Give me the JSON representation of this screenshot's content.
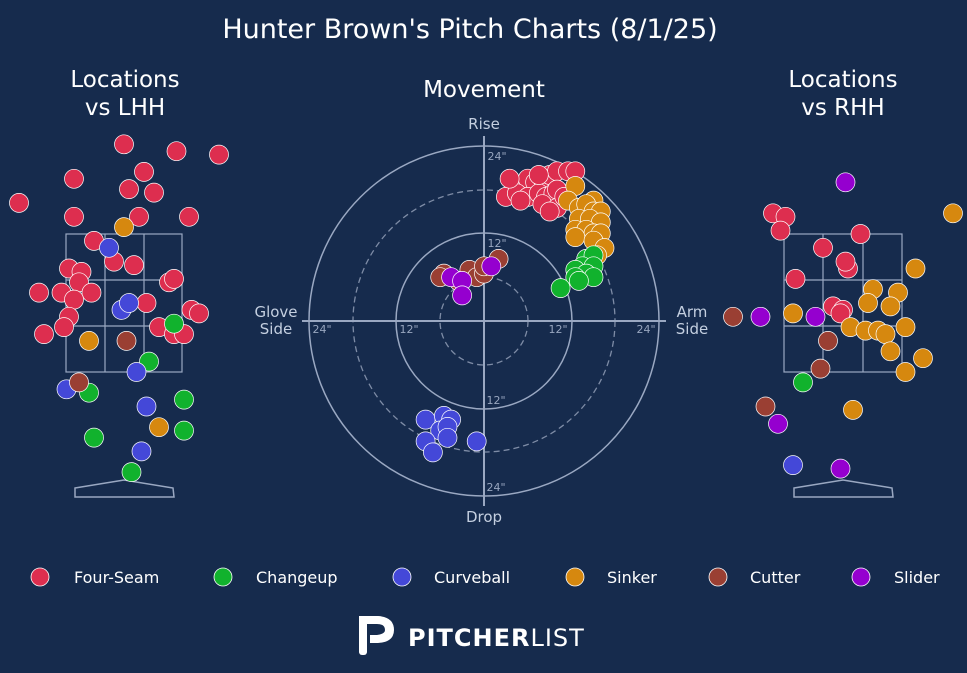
{
  "title": "Hunter Brown's Pitch Charts (8/1/25)",
  "panels": {
    "lhh_title": [
      "Locations",
      "vs LHH"
    ],
    "movement_title": "Movement",
    "rhh_title": [
      "Locations",
      "vs RHH"
    ]
  },
  "movement_axes": {
    "top": "Rise",
    "bottom": "Drop",
    "left": [
      "Glove",
      "Side"
    ],
    "right": [
      "Arm",
      "Side"
    ],
    "ring_labels": [
      "24\"",
      "12\"",
      "12\"",
      "24\"",
      "24\"",
      "12\"",
      "12\"",
      "24\""
    ]
  },
  "colors": {
    "background": "#162b4d",
    "Four-Seam": "#dd2e4f",
    "Changeup": "#11b22d",
    "Curveball": "#4448d8",
    "Sinker": "#d6880f",
    "Cutter": "#9a3f33",
    "Slider": "#9500cf"
  },
  "legend": [
    "Four-Seam",
    "Changeup",
    "Curveball",
    "Sinker",
    "Cutter",
    "Slider"
  ],
  "brand": {
    "bold": "PITCHER",
    "light": "LIST"
  },
  "chart_data": [
    {
      "type": "scatter",
      "title": "Locations vs LHH",
      "units": "feet, catcher view",
      "xlim": [
        -2.2,
        2.2
      ],
      "ylim": [
        -0.3,
        5.4
      ],
      "points": [
        {
          "pitch": "Four-Seam",
          "x": 0.0,
          "y": 4.8
        },
        {
          "pitch": "Four-Seam",
          "x": 1.05,
          "y": 4.7
        },
        {
          "pitch": "Four-Seam",
          "x": 1.9,
          "y": 4.65
        },
        {
          "pitch": "Four-Seam",
          "x": -1.0,
          "y": 4.3
        },
        {
          "pitch": "Four-Seam",
          "x": 0.4,
          "y": 4.4
        },
        {
          "pitch": "Four-Seam",
          "x": 0.1,
          "y": 4.15
        },
        {
          "pitch": "Four-Seam",
          "x": 0.6,
          "y": 4.1
        },
        {
          "pitch": "Four-Seam",
          "x": -2.1,
          "y": 3.95
        },
        {
          "pitch": "Four-Seam",
          "x": -1.0,
          "y": 3.75
        },
        {
          "pitch": "Four-Seam",
          "x": 0.3,
          "y": 3.75
        },
        {
          "pitch": "Four-Seam",
          "x": 1.3,
          "y": 3.75
        },
        {
          "pitch": "Four-Seam",
          "x": -0.6,
          "y": 3.4
        },
        {
          "pitch": "Four-Seam",
          "x": -0.2,
          "y": 3.1
        },
        {
          "pitch": "Four-Seam",
          "x": 0.2,
          "y": 3.05
        },
        {
          "pitch": "Four-Seam",
          "x": -1.1,
          "y": 3.0
        },
        {
          "pitch": "Four-Seam",
          "x": -0.85,
          "y": 2.95
        },
        {
          "pitch": "Four-Seam",
          "x": -0.9,
          "y": 2.8
        },
        {
          "pitch": "Four-Seam",
          "x": 0.9,
          "y": 2.8
        },
        {
          "pitch": "Four-Seam",
          "x": 1.0,
          "y": 2.85
        },
        {
          "pitch": "Four-Seam",
          "x": -1.7,
          "y": 2.65
        },
        {
          "pitch": "Four-Seam",
          "x": -1.25,
          "y": 2.65
        },
        {
          "pitch": "Four-Seam",
          "x": -0.65,
          "y": 2.65
        },
        {
          "pitch": "Four-Seam",
          "x": -1.0,
          "y": 2.55
        },
        {
          "pitch": "Four-Seam",
          "x": 0.45,
          "y": 2.5
        },
        {
          "pitch": "Four-Seam",
          "x": 1.35,
          "y": 2.4
        },
        {
          "pitch": "Four-Seam",
          "x": 1.5,
          "y": 2.35
        },
        {
          "pitch": "Four-Seam",
          "x": -1.1,
          "y": 2.3
        },
        {
          "pitch": "Four-Seam",
          "x": -1.2,
          "y": 2.15
        },
        {
          "pitch": "Four-Seam",
          "x": 0.7,
          "y": 2.15
        },
        {
          "pitch": "Four-Seam",
          "x": 1.0,
          "y": 2.05
        },
        {
          "pitch": "Four-Seam",
          "x": 1.2,
          "y": 2.05
        },
        {
          "pitch": "Four-Seam",
          "x": -1.6,
          "y": 2.05
        },
        {
          "pitch": "Changeup",
          "x": 1.0,
          "y": 2.2
        },
        {
          "pitch": "Changeup",
          "x": 0.5,
          "y": 1.65
        },
        {
          "pitch": "Changeup",
          "x": -0.7,
          "y": 1.2
        },
        {
          "pitch": "Changeup",
          "x": 1.2,
          "y": 1.1
        },
        {
          "pitch": "Changeup",
          "x": -0.6,
          "y": 0.55
        },
        {
          "pitch": "Changeup",
          "x": 1.2,
          "y": 0.65
        },
        {
          "pitch": "Changeup",
          "x": 0.15,
          "y": 0.05
        },
        {
          "pitch": "Curveball",
          "x": -0.3,
          "y": 3.3
        },
        {
          "pitch": "Curveball",
          "x": -0.05,
          "y": 2.4
        },
        {
          "pitch": "Curveball",
          "x": 0.1,
          "y": 2.5
        },
        {
          "pitch": "Curveball",
          "x": -1.15,
          "y": 1.25
        },
        {
          "pitch": "Curveball",
          "x": 0.25,
          "y": 1.5
        },
        {
          "pitch": "Curveball",
          "x": 0.45,
          "y": 1.0
        },
        {
          "pitch": "Curveball",
          "x": 0.35,
          "y": 0.35
        },
        {
          "pitch": "Sinker",
          "x": 0.0,
          "y": 3.6
        },
        {
          "pitch": "Sinker",
          "x": -0.7,
          "y": 1.95
        },
        {
          "pitch": "Sinker",
          "x": 0.7,
          "y": 0.7
        },
        {
          "pitch": "Cutter",
          "x": 0.05,
          "y": 1.95
        },
        {
          "pitch": "Cutter",
          "x": -0.9,
          "y": 1.35
        }
      ]
    },
    {
      "type": "scatter",
      "title": "Movement",
      "units": "inches",
      "xlim": [
        -30,
        30
      ],
      "ylim": [
        -30,
        30
      ],
      "rings": [
        6,
        12,
        18,
        24
      ],
      "points": [
        {
          "pitch": "Four-Seam",
          "x": 5,
          "y": 18.5
        },
        {
          "pitch": "Four-Seam",
          "x": 6,
          "y": 19.5
        },
        {
          "pitch": "Four-Seam",
          "x": 7,
          "y": 19
        },
        {
          "pitch": "Four-Seam",
          "x": 8,
          "y": 19.5
        },
        {
          "pitch": "Four-Seam",
          "x": 9,
          "y": 20
        },
        {
          "pitch": "Four-Seam",
          "x": 10,
          "y": 20.5
        },
        {
          "pitch": "Four-Seam",
          "x": 11.5,
          "y": 20.5
        },
        {
          "pitch": "Four-Seam",
          "x": 12.5,
          "y": 20.5
        },
        {
          "pitch": "Four-Seam",
          "x": 3,
          "y": 17
        },
        {
          "pitch": "Four-Seam",
          "x": 4.5,
          "y": 17.5
        },
        {
          "pitch": "Four-Seam",
          "x": 6,
          "y": 17
        },
        {
          "pitch": "Four-Seam",
          "x": 7.5,
          "y": 17.5
        },
        {
          "pitch": "Four-Seam",
          "x": 8.5,
          "y": 17
        },
        {
          "pitch": "Four-Seam",
          "x": 9.5,
          "y": 17.5
        },
        {
          "pitch": "Four-Seam",
          "x": 10,
          "y": 18
        },
        {
          "pitch": "Four-Seam",
          "x": 5,
          "y": 16.5
        },
        {
          "pitch": "Four-Seam",
          "x": 8,
          "y": 16
        },
        {
          "pitch": "Four-Seam",
          "x": 10,
          "y": 15.5
        },
        {
          "pitch": "Four-Seam",
          "x": 11,
          "y": 17
        },
        {
          "pitch": "Four-Seam",
          "x": 3.5,
          "y": 19.5
        },
        {
          "pitch": "Four-Seam",
          "x": 7.5,
          "y": 20
        },
        {
          "pitch": "Four-Seam",
          "x": 9,
          "y": 15
        },
        {
          "pitch": "Sinker",
          "x": 12.5,
          "y": 18.5
        },
        {
          "pitch": "Sinker",
          "x": 15,
          "y": 16.5
        },
        {
          "pitch": "Sinker",
          "x": 11.5,
          "y": 16.5
        },
        {
          "pitch": "Sinker",
          "x": 13,
          "y": 15.5
        },
        {
          "pitch": "Sinker",
          "x": 14,
          "y": 16
        },
        {
          "pitch": "Sinker",
          "x": 15,
          "y": 15
        },
        {
          "pitch": "Sinker",
          "x": 16,
          "y": 15
        },
        {
          "pitch": "Sinker",
          "x": 13,
          "y": 14
        },
        {
          "pitch": "Sinker",
          "x": 14.5,
          "y": 14
        },
        {
          "pitch": "Sinker",
          "x": 16,
          "y": 13.5
        },
        {
          "pitch": "Sinker",
          "x": 12.5,
          "y": 12.5
        },
        {
          "pitch": "Sinker",
          "x": 14,
          "y": 12.5
        },
        {
          "pitch": "Sinker",
          "x": 15,
          "y": 12
        },
        {
          "pitch": "Sinker",
          "x": 16,
          "y": 12
        },
        {
          "pitch": "Sinker",
          "x": 12.5,
          "y": 11.5
        },
        {
          "pitch": "Sinker",
          "x": 15,
          "y": 11
        },
        {
          "pitch": "Sinker",
          "x": 16.5,
          "y": 10
        },
        {
          "pitch": "Sinker",
          "x": 15.5,
          "y": 9
        },
        {
          "pitch": "Changeup",
          "x": 14,
          "y": 8.5
        },
        {
          "pitch": "Changeup",
          "x": 15,
          "y": 9
        },
        {
          "pitch": "Changeup",
          "x": 13.5,
          "y": 7.5
        },
        {
          "pitch": "Changeup",
          "x": 15,
          "y": 7.5
        },
        {
          "pitch": "Changeup",
          "x": 12.5,
          "y": 7
        },
        {
          "pitch": "Changeup",
          "x": 14,
          "y": 6.5
        },
        {
          "pitch": "Changeup",
          "x": 12.5,
          "y": 6
        },
        {
          "pitch": "Changeup",
          "x": 15,
          "y": 6
        },
        {
          "pitch": "Changeup",
          "x": 13,
          "y": 5.5
        },
        {
          "pitch": "Changeup",
          "x": 10.5,
          "y": 4.5
        },
        {
          "pitch": "Cutter",
          "x": -5.5,
          "y": 6.5
        },
        {
          "pitch": "Cutter",
          "x": -3.5,
          "y": 5.5
        },
        {
          "pitch": "Cutter",
          "x": -2,
          "y": 7
        },
        {
          "pitch": "Cutter",
          "x": -1,
          "y": 6
        },
        {
          "pitch": "Cutter",
          "x": 0,
          "y": 6.5
        },
        {
          "pitch": "Cutter",
          "x": 2,
          "y": 8.5
        },
        {
          "pitch": "Cutter",
          "x": -6,
          "y": 6
        },
        {
          "pitch": "Cutter",
          "x": 0,
          "y": 7.5
        },
        {
          "pitch": "Slider",
          "x": -4.5,
          "y": 6
        },
        {
          "pitch": "Slider",
          "x": -3,
          "y": 5.5
        },
        {
          "pitch": "Slider",
          "x": 1,
          "y": 7.5
        },
        {
          "pitch": "Slider",
          "x": -3,
          "y": 3.5
        },
        {
          "pitch": "Curveball",
          "x": -8,
          "y": -13.5
        },
        {
          "pitch": "Curveball",
          "x": -5.5,
          "y": -13
        },
        {
          "pitch": "Curveball",
          "x": -4.5,
          "y": -13.5
        },
        {
          "pitch": "Curveball",
          "x": -6,
          "y": -15
        },
        {
          "pitch": "Curveball",
          "x": -5,
          "y": -14.5
        },
        {
          "pitch": "Curveball",
          "x": -8,
          "y": -16.5
        },
        {
          "pitch": "Curveball",
          "x": -5,
          "y": -16
        },
        {
          "pitch": "Curveball",
          "x": -7,
          "y": -18
        },
        {
          "pitch": "Curveball",
          "x": -1,
          "y": -16.5
        }
      ]
    },
    {
      "type": "scatter",
      "title": "Locations vs RHH",
      "units": "feet, catcher view",
      "xlim": [
        -2.2,
        2.2
      ],
      "ylim": [
        -0.3,
        5.4
      ],
      "points": [
        {
          "pitch": "Four-Seam",
          "x": -1.4,
          "y": 3.8
        },
        {
          "pitch": "Four-Seam",
          "x": -1.15,
          "y": 3.75
        },
        {
          "pitch": "Four-Seam",
          "x": -1.25,
          "y": 3.55
        },
        {
          "pitch": "Four-Seam",
          "x": 0.35,
          "y": 3.5
        },
        {
          "pitch": "Four-Seam",
          "x": -0.4,
          "y": 3.3
        },
        {
          "pitch": "Four-Seam",
          "x": 0.1,
          "y": 3.0
        },
        {
          "pitch": "Four-Seam",
          "x": 0.05,
          "y": 3.1
        },
        {
          "pitch": "Four-Seam",
          "x": -0.95,
          "y": 2.85
        },
        {
          "pitch": "Four-Seam",
          "x": -0.2,
          "y": 2.45
        },
        {
          "pitch": "Four-Seam",
          "x": 0.0,
          "y": 2.4
        },
        {
          "pitch": "Four-Seam",
          "x": -0.05,
          "y": 2.35
        },
        {
          "pitch": "Changeup",
          "x": -0.8,
          "y": 1.35
        },
        {
          "pitch": "Curveball",
          "x": -1.0,
          "y": 0.15
        },
        {
          "pitch": "Sinker",
          "x": 2.2,
          "y": 3.8
        },
        {
          "pitch": "Sinker",
          "x": 1.45,
          "y": 3.0
        },
        {
          "pitch": "Sinker",
          "x": 0.6,
          "y": 2.7
        },
        {
          "pitch": "Sinker",
          "x": 1.1,
          "y": 2.65
        },
        {
          "pitch": "Sinker",
          "x": 0.5,
          "y": 2.5
        },
        {
          "pitch": "Sinker",
          "x": 0.95,
          "y": 2.45
        },
        {
          "pitch": "Sinker",
          "x": 0.15,
          "y": 2.15
        },
        {
          "pitch": "Sinker",
          "x": 0.45,
          "y": 2.1
        },
        {
          "pitch": "Sinker",
          "x": 0.7,
          "y": 2.1
        },
        {
          "pitch": "Sinker",
          "x": 0.85,
          "y": 2.05
        },
        {
          "pitch": "Sinker",
          "x": 1.25,
          "y": 2.15
        },
        {
          "pitch": "Sinker",
          "x": 0.95,
          "y": 1.8
        },
        {
          "pitch": "Sinker",
          "x": 1.6,
          "y": 1.7
        },
        {
          "pitch": "Sinker",
          "x": 1.25,
          "y": 1.5
        },
        {
          "pitch": "Sinker",
          "x": -1.0,
          "y": 2.35
        },
        {
          "pitch": "Sinker",
          "x": 0.2,
          "y": 0.95
        },
        {
          "pitch": "Cutter",
          "x": -2.2,
          "y": 2.3
        },
        {
          "pitch": "Cutter",
          "x": -0.3,
          "y": 1.95
        },
        {
          "pitch": "Cutter",
          "x": -0.45,
          "y": 1.55
        },
        {
          "pitch": "Cutter",
          "x": -1.55,
          "y": 1.0
        },
        {
          "pitch": "Slider",
          "x": 0.05,
          "y": 4.25
        },
        {
          "pitch": "Slider",
          "x": -1.65,
          "y": 2.3
        },
        {
          "pitch": "Slider",
          "x": -0.55,
          "y": 2.3
        },
        {
          "pitch": "Slider",
          "x": -1.3,
          "y": 0.75
        },
        {
          "pitch": "Slider",
          "x": -0.05,
          "y": 0.1
        }
      ]
    }
  ]
}
